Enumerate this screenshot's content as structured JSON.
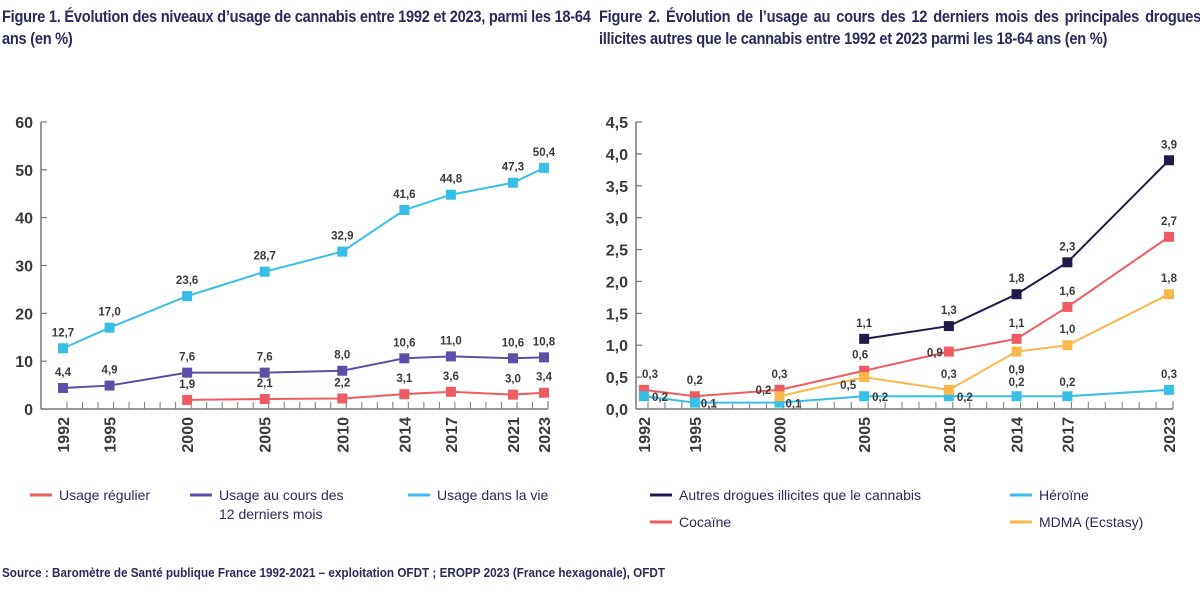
{
  "figure1": {
    "title": "Figure 1. Évolution des niveaux d’usage de cannabis entre 1992 et 2023, parmi les 18-64 ans (en %)"
  },
  "figure2": {
    "title": "Figure 2. Évolution de l’usage au cours des 12 derniers mois des principales drogues illicites autres que le cannabis entre 1992 et 2023 parmi les 18-64 ans (en %)"
  },
  "source": "Source : Baromètre de Santé publique France 1992-2021 – exploitation OFDT ; EROPP  2023 (France hexagonale), OFDT",
  "chart_data": [
    {
      "type": "line",
      "title": "Figure 1. Évolution des niveaux d’usage de cannabis entre 1992 et 2023, parmi les 18-64 ans (en %)",
      "xlabel": "",
      "ylabel": "",
      "x": [
        1992,
        1995,
        2000,
        2005,
        2010,
        2014,
        2017,
        2021,
        2023
      ],
      "xlim": [
        1992,
        2023
      ],
      "ylim": [
        0,
        60
      ],
      "yticks": [
        0,
        10,
        20,
        30,
        40,
        50,
        60
      ],
      "ytick_labels": [
        "0",
        "10",
        "20",
        "30",
        "40",
        "50",
        "60"
      ],
      "xtick_labels": [
        "1992",
        "1995",
        "2000",
        "2005",
        "2010",
        "2014",
        "2017",
        "2021",
        "2023"
      ],
      "grid": false,
      "legend_position": "bottom",
      "series": [
        {
          "name": "Usage régulier",
          "color": "#ef5b63",
          "values": [
            null,
            null,
            1.9,
            2.1,
            2.2,
            3.1,
            3.6,
            3.0,
            3.4
          ],
          "labels": [
            "",
            "",
            "1,9",
            "2,1",
            "2,2",
            "3,1",
            "3,6",
            "3,0",
            "3,4"
          ]
        },
        {
          "name": "Usage au cours des 12 derniers mois",
          "legend_lines": [
            "Usage au cours des",
            "12 derniers mois"
          ],
          "color": "#5b4fa8",
          "values": [
            4.4,
            4.9,
            7.6,
            7.6,
            8.0,
            10.6,
            11.0,
            10.6,
            10.8
          ],
          "labels": [
            "4,4",
            "4,9",
            "7,6",
            "7,6",
            "8,0",
            "10,6",
            "11,0",
            "10,6",
            "10,8"
          ]
        },
        {
          "name": "Usage dans la vie",
          "color": "#38bfe8",
          "values": [
            12.7,
            17.0,
            23.6,
            28.7,
            32.9,
            41.6,
            44.8,
            47.3,
            50.4
          ],
          "labels": [
            "12,7",
            "17,0",
            "23,6",
            "28,7",
            "32,9",
            "41,6",
            "44,8",
            "47,3",
            "50,4"
          ]
        }
      ]
    },
    {
      "type": "line",
      "title": "Figure 2. Évolution de l’usage au cours des 12 derniers mois des principales drogues illicites autres que le cannabis entre 1992 et 2023 parmi les 18-64 ans (en %)",
      "xlabel": "",
      "ylabel": "",
      "x": [
        1992,
        1995,
        2000,
        2005,
        2010,
        2014,
        2017,
        2023
      ],
      "xlim": [
        1992,
        2023
      ],
      "ylim": [
        0,
        4.5
      ],
      "yticks": [
        0,
        0.5,
        1,
        1.5,
        2,
        2.5,
        3,
        3.5,
        4,
        4.5
      ],
      "ytick_labels": [
        "0,0",
        "0,5",
        "1,0",
        "1,5",
        "2,0",
        "2,5",
        "3,0",
        "3,5",
        "4,0",
        "4,5"
      ],
      "xtick_labels": [
        "1992",
        "1995",
        "2000",
        "2005",
        "2010",
        "2014",
        "2017",
        "2023"
      ],
      "grid": false,
      "legend_position": "bottom",
      "series": [
        {
          "name": "Autres drogues illicites que le cannabis",
          "color": "#1e1b4b",
          "values": [
            null,
            null,
            null,
            1.1,
            1.3,
            1.8,
            2.3,
            3.9
          ],
          "labels": [
            "",
            "",
            "",
            "1,1",
            "1,3",
            "1,8",
            "2,3",
            "3,9"
          ]
        },
        {
          "name": "Cocaïne",
          "color": "#ef5b63",
          "values": [
            0.3,
            0.2,
            0.3,
            0.6,
            0.9,
            1.1,
            1.6,
            2.7
          ],
          "labels": [
            "0,3",
            "0,2",
            "0,3",
            "0,6",
            "0,9",
            "1,1",
            "1,6",
            "2,7"
          ]
        },
        {
          "name": "Héroïne",
          "color": "#38bfe8",
          "values": [
            0.2,
            0.1,
            0.1,
            0.2,
            0.2,
            0.2,
            0.2,
            0.3
          ],
          "labels": [
            "0,2",
            "0,1",
            "0,1",
            "0,2",
            "0,2",
            "0,2",
            "0,2",
            "0,3"
          ]
        },
        {
          "name": "MDMA (Ecstasy)",
          "color": "#fbb84a",
          "values": [
            null,
            null,
            0.2,
            0.5,
            0.3,
            0.9,
            1.0,
            1.8
          ],
          "labels": [
            "",
            "",
            "0,2",
            "0,5",
            "0,3",
            "0,9",
            "1,0",
            "1,8"
          ]
        }
      ]
    }
  ]
}
